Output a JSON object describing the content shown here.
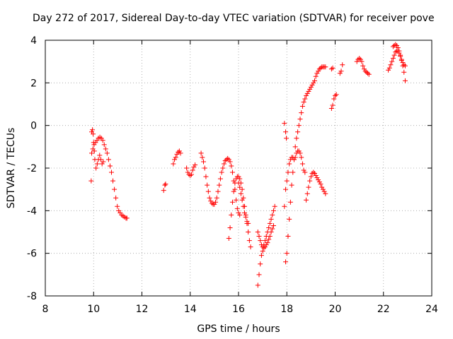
{
  "chart_data": {
    "type": "scatter",
    "title": "Day 272 of 2017, Sidereal Day-to-day VTEC variation (SDTVAR) for receiver pove",
    "xlabel": "GPS time / hours",
    "ylabel": "SDTVAR / TECUs",
    "xlim": [
      8,
      24
    ],
    "ylim": [
      -8,
      4
    ],
    "xticks": [
      8,
      10,
      12,
      14,
      16,
      18,
      20,
      22,
      24
    ],
    "yticks": [
      -8,
      -6,
      -4,
      -2,
      0,
      2,
      4
    ],
    "grid": true,
    "marker": "+",
    "series": [
      {
        "name": "SDTVAR",
        "color": "#ff0000",
        "segments": [
          [
            [
              9.9,
              -2.6
            ],
            [
              9.92,
              -0.3
            ],
            [
              9.95,
              -0.2
            ],
            [
              9.98,
              -0.4
            ],
            [
              10.0,
              -0.8
            ],
            [
              10.03,
              -1.2
            ],
            [
              10.05,
              -1.6
            ],
            [
              10.1,
              -2.0
            ],
            [
              10.15,
              -1.8
            ],
            [
              10.2,
              -1.6
            ],
            [
              10.25,
              -1.4
            ],
            [
              10.3,
              -1.6
            ],
            [
              10.35,
              -1.8
            ],
            [
              10.4,
              -1.7
            ]
          ],
          [
            [
              9.92,
              -1.3
            ],
            [
              9.97,
              -1.1
            ],
            [
              10.02,
              -0.9
            ],
            [
              10.08,
              -0.8
            ],
            [
              10.14,
              -0.7
            ],
            [
              10.2,
              -0.6
            ],
            [
              10.26,
              -0.55
            ],
            [
              10.32,
              -0.6
            ],
            [
              10.38,
              -0.7
            ],
            [
              10.44,
              -0.9
            ],
            [
              10.5,
              -1.1
            ],
            [
              10.56,
              -1.3
            ],
            [
              10.62,
              -1.6
            ],
            [
              10.68,
              -1.9
            ],
            [
              10.74,
              -2.2
            ],
            [
              10.8,
              -2.6
            ],
            [
              10.86,
              -3.0
            ],
            [
              10.92,
              -3.4
            ],
            [
              10.98,
              -3.8
            ],
            [
              11.04,
              -4.0
            ],
            [
              11.1,
              -4.1
            ],
            [
              11.16,
              -4.2
            ],
            [
              11.22,
              -4.25
            ],
            [
              11.28,
              -4.3
            ],
            [
              11.34,
              -4.35
            ],
            [
              11.38,
              -4.35
            ]
          ],
          [
            [
              12.9,
              -3.05
            ],
            [
              12.95,
              -2.8
            ],
            [
              12.98,
              -2.75
            ]
          ],
          [
            [
              13.3,
              -1.8
            ],
            [
              13.35,
              -1.6
            ],
            [
              13.4,
              -1.5
            ],
            [
              13.45,
              -1.35
            ],
            [
              13.5,
              -1.25
            ],
            [
              13.55,
              -1.2
            ],
            [
              13.6,
              -1.3
            ]
          ],
          [
            [
              13.85,
              -2.0
            ],
            [
              13.9,
              -2.2
            ],
            [
              13.95,
              -2.3
            ],
            [
              14.0,
              -2.35
            ],
            [
              14.05,
              -2.3
            ],
            [
              14.1,
              -2.1
            ],
            [
              14.15,
              -1.95
            ],
            [
              14.2,
              -1.85
            ]
          ],
          [
            [
              14.45,
              -1.3
            ],
            [
              14.5,
              -1.5
            ],
            [
              14.55,
              -1.7
            ],
            [
              14.6,
              -2.0
            ],
            [
              14.65,
              -2.4
            ],
            [
              14.7,
              -2.8
            ],
            [
              14.75,
              -3.1
            ],
            [
              14.8,
              -3.4
            ],
            [
              14.85,
              -3.55
            ],
            [
              14.9,
              -3.65
            ],
            [
              14.95,
              -3.7
            ],
            [
              15.0,
              -3.7
            ],
            [
              15.05,
              -3.6
            ],
            [
              15.1,
              -3.4
            ],
            [
              15.15,
              -3.1
            ],
            [
              15.2,
              -2.8
            ],
            [
              15.25,
              -2.5
            ],
            [
              15.3,
              -2.2
            ],
            [
              15.35,
              -2.0
            ],
            [
              15.4,
              -1.8
            ],
            [
              15.45,
              -1.65
            ],
            [
              15.5,
              -1.6
            ],
            [
              15.55,
              -1.55
            ],
            [
              15.6,
              -1.6
            ],
            [
              15.65,
              -1.7
            ],
            [
              15.7,
              -1.9
            ],
            [
              15.75,
              -2.2
            ],
            [
              15.8,
              -2.6
            ],
            [
              15.85,
              -3.0
            ],
            [
              15.9,
              -3.5
            ],
            [
              15.95,
              -3.9
            ],
            [
              16.0,
              -4.1
            ],
            [
              16.05,
              -4.2
            ]
          ],
          [
            [
              15.6,
              -5.3
            ],
            [
              15.65,
              -4.8
            ],
            [
              15.7,
              -4.2
            ],
            [
              15.75,
              -3.6
            ],
            [
              15.8,
              -3.1
            ],
            [
              15.85,
              -2.7
            ],
            [
              15.9,
              -2.5
            ],
            [
              15.95,
              -2.4
            ],
            [
              16.0,
              -2.4
            ],
            [
              16.05,
              -2.5
            ],
            [
              16.1,
              -2.7
            ],
            [
              16.15,
              -3.0
            ],
            [
              16.2,
              -3.4
            ],
            [
              16.25,
              -3.8
            ],
            [
              16.3,
              -4.2
            ],
            [
              16.35,
              -4.6
            ],
            [
              16.4,
              -5.0
            ],
            [
              16.45,
              -5.4
            ],
            [
              16.5,
              -5.7
            ]
          ],
          [
            [
              16.0,
              -2.7
            ],
            [
              16.05,
              -2.9
            ],
            [
              16.1,
              -3.2
            ],
            [
              16.15,
              -3.5
            ],
            [
              16.2,
              -3.8
            ],
            [
              16.25,
              -4.1
            ],
            [
              16.3,
              -4.3
            ],
            [
              16.35,
              -4.5
            ],
            [
              16.4,
              -4.6
            ]
          ],
          [
            [
              16.8,
              -7.5
            ],
            [
              16.85,
              -7.0
            ],
            [
              16.9,
              -6.5
            ],
            [
              16.95,
              -6.1
            ],
            [
              17.0,
              -5.9
            ],
            [
              17.05,
              -5.6
            ],
            [
              17.1,
              -5.4
            ],
            [
              17.15,
              -5.2
            ],
            [
              17.2,
              -5.0
            ],
            [
              17.25,
              -4.8
            ],
            [
              17.3,
              -4.6
            ],
            [
              17.35,
              -4.4
            ],
            [
              17.4,
              -4.2
            ],
            [
              17.45,
              -4.0
            ],
            [
              17.5,
              -3.8
            ]
          ],
          [
            [
              16.8,
              -5.0
            ],
            [
              16.85,
              -5.2
            ],
            [
              16.9,
              -5.4
            ],
            [
              16.95,
              -5.6
            ],
            [
              17.0,
              -5.7
            ],
            [
              17.05,
              -5.75
            ],
            [
              17.1,
              -5.7
            ],
            [
              17.15,
              -5.6
            ],
            [
              17.2,
              -5.5
            ],
            [
              17.25,
              -5.35
            ],
            [
              17.3,
              -5.2
            ],
            [
              17.35,
              -5.0
            ],
            [
              17.4,
              -4.85
            ],
            [
              17.45,
              -4.7
            ]
          ],
          [
            [
              17.9,
              0.1
            ],
            [
              17.95,
              -0.3
            ],
            [
              17.98,
              -0.6
            ]
          ],
          [
            [
              17.9,
              -3.8
            ],
            [
              17.95,
              -3.0
            ],
            [
              18.0,
              -2.6
            ],
            [
              18.05,
              -2.2
            ],
            [
              18.1,
              -1.8
            ],
            [
              18.15,
              -1.6
            ],
            [
              18.2,
              -1.5
            ],
            [
              18.25,
              -1.5
            ],
            [
              18.3,
              -1.6
            ],
            [
              18.35,
              -1.5
            ],
            [
              18.4,
              -1.3
            ],
            [
              18.45,
              -1.2
            ],
            [
              18.5,
              -1.2
            ],
            [
              18.55,
              -1.3
            ],
            [
              18.6,
              -1.5
            ],
            [
              18.65,
              -1.8
            ],
            [
              18.7,
              -2.1
            ],
            [
              18.75,
              -2.2
            ]
          ],
          [
            [
              17.95,
              -6.4
            ],
            [
              18.0,
              -6.0
            ],
            [
              18.05,
              -5.2
            ],
            [
              18.1,
              -4.4
            ],
            [
              18.15,
              -3.6
            ],
            [
              18.2,
              -2.8
            ],
            [
              18.25,
              -2.2
            ],
            [
              18.3,
              -1.6
            ],
            [
              18.35,
              -1.0
            ],
            [
              18.4,
              -0.6
            ],
            [
              18.45,
              -0.3
            ],
            [
              18.5,
              0.0
            ],
            [
              18.55,
              0.3
            ],
            [
              18.6,
              0.6
            ],
            [
              18.65,
              0.9
            ],
            [
              18.7,
              1.1
            ],
            [
              18.75,
              1.25
            ],
            [
              18.8,
              1.4
            ],
            [
              18.85,
              1.5
            ],
            [
              18.9,
              1.6
            ],
            [
              18.95,
              1.7
            ],
            [
              19.0,
              1.8
            ],
            [
              19.05,
              1.9
            ],
            [
              19.1,
              2.0
            ],
            [
              19.15,
              2.1
            ],
            [
              19.2,
              2.3
            ],
            [
              19.25,
              2.45
            ],
            [
              19.3,
              2.55
            ],
            [
              19.35,
              2.65
            ],
            [
              19.4,
              2.7
            ],
            [
              19.45,
              2.75
            ],
            [
              19.5,
              2.75
            ],
            [
              19.55,
              2.75
            ],
            [
              19.6,
              2.75
            ]
          ],
          [
            [
              18.8,
              -3.5
            ],
            [
              18.85,
              -3.2
            ],
            [
              18.9,
              -2.9
            ],
            [
              18.95,
              -2.6
            ],
            [
              19.0,
              -2.4
            ],
            [
              19.05,
              -2.25
            ],
            [
              19.1,
              -2.2
            ],
            [
              19.15,
              -2.25
            ],
            [
              19.2,
              -2.35
            ],
            [
              19.25,
              -2.45
            ],
            [
              19.3,
              -2.55
            ],
            [
              19.35,
              -2.65
            ],
            [
              19.4,
              -2.75
            ],
            [
              19.45,
              -2.9
            ],
            [
              19.5,
              -3.0
            ],
            [
              19.55,
              -3.1
            ],
            [
              19.6,
              -3.2
            ]
          ],
          [
            [
              19.85,
              0.8
            ],
            [
              19.9,
              0.95
            ],
            [
              19.95,
              1.25
            ],
            [
              20.0,
              1.4
            ],
            [
              20.05,
              1.45
            ]
          ],
          [
            [
              19.85,
              2.65
            ],
            [
              19.9,
              2.7
            ]
          ],
          [
            [
              20.2,
              2.45
            ],
            [
              20.25,
              2.55
            ],
            [
              20.3,
              2.85
            ]
          ],
          [
            [
              20.9,
              3.0
            ],
            [
              20.95,
              3.1
            ],
            [
              21.0,
              3.15
            ],
            [
              21.05,
              3.1
            ],
            [
              21.1,
              3.0
            ],
            [
              21.15,
              2.8
            ],
            [
              21.2,
              2.65
            ],
            [
              21.25,
              2.55
            ],
            [
              21.3,
              2.5
            ],
            [
              21.35,
              2.45
            ],
            [
              21.4,
              2.4
            ]
          ],
          [
            [
              22.2,
              2.6
            ],
            [
              22.25,
              2.7
            ],
            [
              22.3,
              2.85
            ],
            [
              22.35,
              3.0
            ],
            [
              22.4,
              3.15
            ],
            [
              22.45,
              3.3
            ],
            [
              22.5,
              3.45
            ],
            [
              22.55,
              3.5
            ],
            [
              22.6,
              3.5
            ],
            [
              22.65,
              3.4
            ],
            [
              22.7,
              3.25
            ],
            [
              22.75,
              3.05
            ],
            [
              22.8,
              2.8
            ],
            [
              22.85,
              2.5
            ],
            [
              22.9,
              2.1
            ]
          ],
          [
            [
              22.4,
              3.7
            ],
            [
              22.45,
              3.75
            ],
            [
              22.5,
              3.8
            ],
            [
              22.55,
              3.75
            ],
            [
              22.6,
              3.65
            ],
            [
              22.65,
              3.5
            ],
            [
              22.7,
              3.3
            ],
            [
              22.75,
              3.1
            ],
            [
              22.8,
              2.95
            ],
            [
              22.85,
              2.85
            ],
            [
              22.9,
              2.8
            ]
          ]
        ]
      }
    ]
  }
}
